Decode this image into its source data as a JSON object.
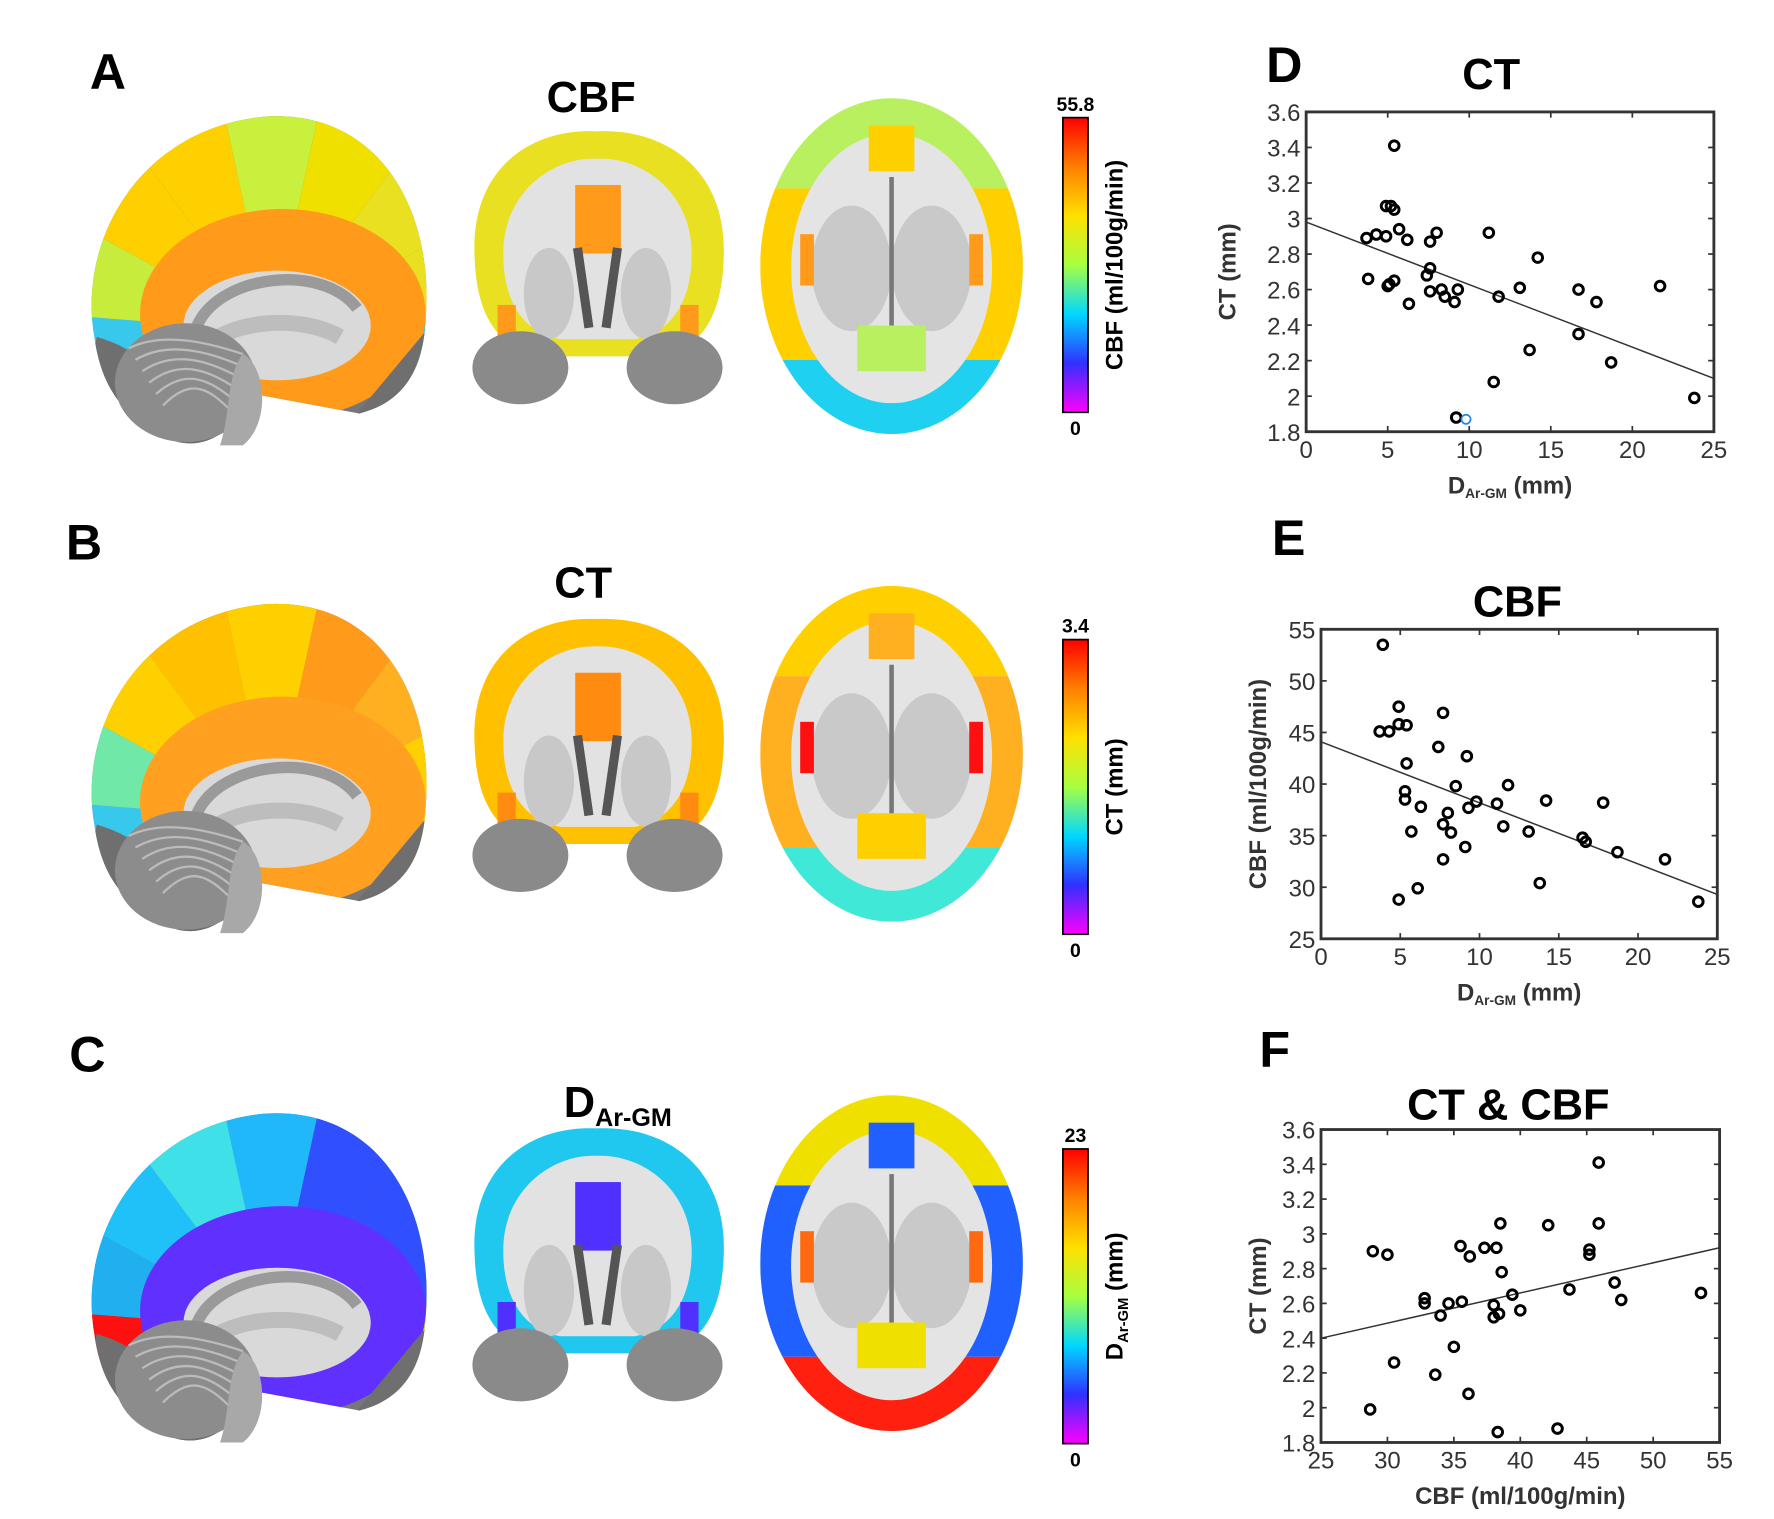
{
  "panels": {
    "A": {
      "letter": "A",
      "title": "CBF",
      "colorbar": {
        "max": "55.8",
        "min": "0",
        "label": "CBF (ml/100g/min)"
      },
      "colors": {
        "sag": [
          "#38c8ec",
          "#c8ec3c",
          "#ffd000",
          "#ffd000",
          "#c8f03c",
          "#f0e000",
          "#e8e020",
          "#e8e020",
          "#20d0f0"
        ],
        "sag_inner": "#ff9a1a",
        "cor_cortex": "#e8e020",
        "cor_inner": "#ff9a1a",
        "ax_front": "#b8f060",
        "ax_mid": "#ffd000",
        "ax_back": "#20d0f0",
        "ax_patch": "#ff9a1a"
      }
    },
    "B": {
      "letter": "B",
      "title": "CT",
      "colorbar": {
        "max": "3.4",
        "min": "0",
        "label": "CT (mm)"
      },
      "colors": {
        "sag": [
          "#38c8ec",
          "#70e8a8",
          "#ffd000",
          "#ffc000",
          "#ffd000",
          "#ff9a1a",
          "#ffb020",
          "#ffd000",
          "#ffd000"
        ],
        "sag_inner": "#ffa020",
        "cor_cortex": "#ffc000",
        "cor_inner": "#ff8c10",
        "ax_front": "#ffd000",
        "ax_mid": "#ffb020",
        "ax_back": "#40e8d8",
        "ax_patch": "#ff1010"
      }
    },
    "C": {
      "letter": "C",
      "title_main": "D",
      "title_sub": "Ar-GM",
      "colorbar": {
        "max": "23",
        "min": "0",
        "label_main": "D",
        "label_sub": "Ar-GM",
        "label_unit": " (mm)"
      },
      "colors": {
        "sag": [
          "#ff1010",
          "#20b0f0",
          "#20c0f8",
          "#40e0e8",
          "#20b8f8",
          "#3050ff",
          "#3050ff",
          "#3050ff",
          "#f0e000"
        ],
        "sag_inner": "#6030ff",
        "cor_cortex": "#20c8f0",
        "cor_inner": "#5030ff",
        "ax_front": "#f0e000",
        "ax_mid": "#2060ff",
        "ax_back": "#ff2010",
        "ax_patch": "#ff6a10"
      }
    }
  },
  "colorbar_gradient": [
    "#ff00ff",
    "#3030ff",
    "#00d8ff",
    "#a8ff40",
    "#ffe000",
    "#ff8000",
    "#ff0000"
  ],
  "chart_data": [
    {
      "letter": "D",
      "type": "scatter",
      "title": "CT",
      "xlabel_main": "D",
      "xlabel_sub": "Ar-GM",
      "xlabel_unit": " (mm)",
      "ylabel": "CT (mm)",
      "xlim": [
        0,
        25
      ],
      "ylim": [
        1.8,
        3.6
      ],
      "xticks": [
        "0",
        "5",
        "10",
        "15",
        "20",
        "25"
      ],
      "yticks": [
        "1.8",
        "2",
        "2.2",
        "2.4",
        "2.6",
        "2.8",
        "3",
        "3.2",
        "3.4",
        "3.6"
      ],
      "fit_line": [
        [
          0,
          2.98
        ],
        [
          25,
          2.1
        ]
      ],
      "points": [
        [
          3.7,
          2.89
        ],
        [
          4.3,
          2.91
        ],
        [
          4.9,
          2.9
        ],
        [
          3.8,
          2.66
        ],
        [
          5.0,
          2.62
        ],
        [
          5.1,
          2.63
        ],
        [
          5.4,
          2.65
        ],
        [
          5.4,
          3.41
        ],
        [
          4.9,
          3.07
        ],
        [
          5.2,
          3.07
        ],
        [
          5.4,
          3.05
        ],
        [
          5.7,
          2.94
        ],
        [
          6.2,
          2.88
        ],
        [
          6.3,
          2.52
        ],
        [
          7.4,
          2.68
        ],
        [
          7.6,
          2.72
        ],
        [
          7.6,
          2.87
        ],
        [
          8.0,
          2.92
        ],
        [
          7.6,
          2.59
        ],
        [
          8.3,
          2.6
        ],
        [
          8.5,
          2.56
        ],
        [
          9.1,
          2.53
        ],
        [
          9.3,
          2.6
        ],
        [
          9.2,
          1.88
        ],
        [
          11.2,
          2.92
        ],
        [
          11.8,
          2.56
        ],
        [
          11.5,
          2.08
        ],
        [
          13.1,
          2.61
        ],
        [
          13.7,
          2.26
        ],
        [
          14.2,
          2.78
        ],
        [
          16.7,
          2.35
        ],
        [
          16.7,
          2.6
        ],
        [
          17.8,
          2.53
        ],
        [
          18.7,
          2.19
        ],
        [
          21.7,
          2.62
        ],
        [
          23.8,
          1.99
        ]
      ],
      "highlight_points": [
        [
          9.8,
          1.87
        ]
      ],
      "highlight_color": "#1e88e5"
    },
    {
      "letter": "E",
      "type": "scatter",
      "title": "CBF",
      "xlabel_main": "D",
      "xlabel_sub": "Ar-GM",
      "xlabel_unit": " (mm)",
      "ylabel": "CBF (ml/100g/min)",
      "xlim": [
        0,
        25
      ],
      "ylim": [
        25,
        55
      ],
      "xticks": [
        "0",
        "5",
        "10",
        "15",
        "20",
        "25"
      ],
      "yticks": [
        "25",
        "30",
        "35",
        "40",
        "45",
        "50",
        "55"
      ],
      "fit_line": [
        [
          0,
          44.1
        ],
        [
          25,
          29.3
        ]
      ],
      "points": [
        [
          3.9,
          53.5
        ],
        [
          3.7,
          45.1
        ],
        [
          4.3,
          45.1
        ],
        [
          4.9,
          47.5
        ],
        [
          4.9,
          45.8
        ],
        [
          5.4,
          45.7
        ],
        [
          5.4,
          42.0
        ],
        [
          5.3,
          39.3
        ],
        [
          5.3,
          38.5
        ],
        [
          6.3,
          37.8
        ],
        [
          5.7,
          35.4
        ],
        [
          4.9,
          28.8
        ],
        [
          6.1,
          29.9
        ],
        [
          7.7,
          46.9
        ],
        [
          7.4,
          43.6
        ],
        [
          8.5,
          39.8
        ],
        [
          9.2,
          42.7
        ],
        [
          9.8,
          38.3
        ],
        [
          9.3,
          37.7
        ],
        [
          8.0,
          37.2
        ],
        [
          7.7,
          36.1
        ],
        [
          8.2,
          35.3
        ],
        [
          7.7,
          32.7
        ],
        [
          9.1,
          33.9
        ],
        [
          11.1,
          38.1
        ],
        [
          11.8,
          39.9
        ],
        [
          11.5,
          35.9
        ],
        [
          13.1,
          35.4
        ],
        [
          13.8,
          30.4
        ],
        [
          14.2,
          38.4
        ],
        [
          16.5,
          34.8
        ],
        [
          16.7,
          34.4
        ],
        [
          17.8,
          38.2
        ],
        [
          18.7,
          33.4
        ],
        [
          21.7,
          32.7
        ],
        [
          23.8,
          28.6
        ]
      ],
      "highlight_points": [],
      "highlight_color": "#1e88e5"
    },
    {
      "letter": "F",
      "type": "scatter",
      "title": "CT & CBF",
      "xlabel_main": "CBF (ml/100g/min)",
      "xlabel_sub": "",
      "xlabel_unit": "",
      "ylabel": "CT (mm)",
      "xlim": [
        25,
        55
      ],
      "ylim": [
        1.8,
        3.6
      ],
      "xticks": [
        "25",
        "30",
        "35",
        "40",
        "45",
        "50",
        "55"
      ],
      "yticks": [
        "1.8",
        "2",
        "2.2",
        "2.4",
        "2.6",
        "2.8",
        "3",
        "3.2",
        "3.4",
        "3.6"
      ],
      "fit_line": [
        [
          25,
          2.4
        ],
        [
          55,
          2.92
        ]
      ],
      "points": [
        [
          28.9,
          2.9
        ],
        [
          30.0,
          2.88
        ],
        [
          28.7,
          1.99
        ],
        [
          30.5,
          2.26
        ],
        [
          32.8,
          2.63
        ],
        [
          32.8,
          2.6
        ],
        [
          33.6,
          2.19
        ],
        [
          34.0,
          2.53
        ],
        [
          34.6,
          2.6
        ],
        [
          35.5,
          2.93
        ],
        [
          35.6,
          2.61
        ],
        [
          36.2,
          2.87
        ],
        [
          35.0,
          2.35
        ],
        [
          36.1,
          2.08
        ],
        [
          37.3,
          2.92
        ],
        [
          38.2,
          2.92
        ],
        [
          38.5,
          3.06
        ],
        [
          38.6,
          2.78
        ],
        [
          38.0,
          2.59
        ],
        [
          38.0,
          2.52
        ],
        [
          38.4,
          2.54
        ],
        [
          38.3,
          1.86
        ],
        [
          39.4,
          2.65
        ],
        [
          40.0,
          2.56
        ],
        [
          42.1,
          3.05
        ],
        [
          42.8,
          1.88
        ],
        [
          43.7,
          2.68
        ],
        [
          45.2,
          2.91
        ],
        [
          45.2,
          2.88
        ],
        [
          45.9,
          3.41
        ],
        [
          45.9,
          3.06
        ],
        [
          47.1,
          2.72
        ],
        [
          47.6,
          2.62
        ],
        [
          53.6,
          2.66
        ]
      ],
      "highlight_points": [],
      "highlight_color": "#1e88e5"
    }
  ]
}
